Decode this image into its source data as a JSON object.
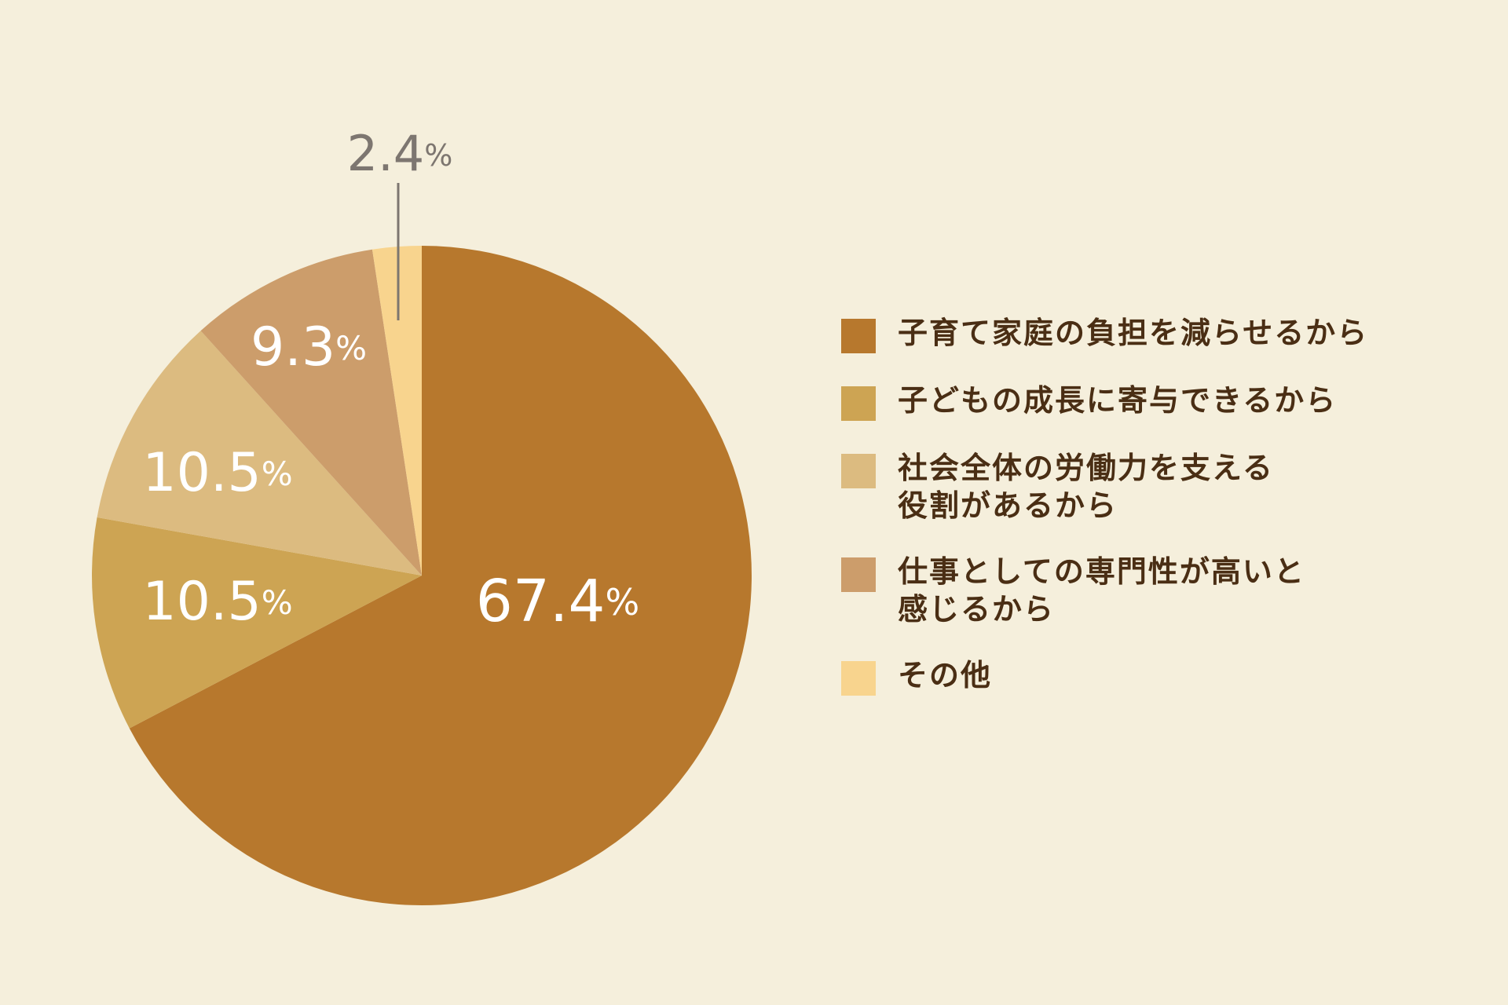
{
  "chart_data": {
    "type": "pie",
    "title": "",
    "start_angle_deg": 0,
    "direction": "clockwise",
    "slices": [
      {
        "label": "子育て家庭の負担を減らせるから",
        "value": 67.4,
        "display": "67.4",
        "unit": "%",
        "color": "#b7782d",
        "label_color": "#ffffff"
      },
      {
        "label": "子どもの成長に寄与できるから",
        "value": 10.5,
        "display": "10.5",
        "unit": "%",
        "color": "#cda453",
        "label_color": "#ffffff"
      },
      {
        "label": "社会全体の労働力を支える役割があるから",
        "value": 10.5,
        "display": "10.5",
        "unit": "%",
        "color": "#dcbb80",
        "label_color": "#ffffff"
      },
      {
        "label": "仕事としての専門性が高いと感じるから",
        "value": 9.3,
        "display": "9.3",
        "unit": "%",
        "color": "#cc9d6b",
        "label_color": "#ffffff"
      },
      {
        "label": "その他",
        "value": 2.4,
        "display": "2.4",
        "unit": "%",
        "color": "#f8d48e",
        "label_color": "#7d7670"
      }
    ],
    "legend": {
      "placement": "right",
      "items": [
        {
          "lines": [
            "子育て家庭の負担を減らせるから"
          ],
          "color": "#b7782d"
        },
        {
          "lines": [
            "子どもの成長に寄与できるから"
          ],
          "color": "#cda453"
        },
        {
          "lines": [
            "社会全体の労働力を支える",
            "役割があるから"
          ],
          "color": "#dcbb80"
        },
        {
          "lines": [
            "仕事としての専門性が高いと",
            "感じるから"
          ],
          "color": "#cc9d6b"
        },
        {
          "lines": [
            "その他"
          ],
          "color": "#f8d48e"
        }
      ]
    }
  }
}
